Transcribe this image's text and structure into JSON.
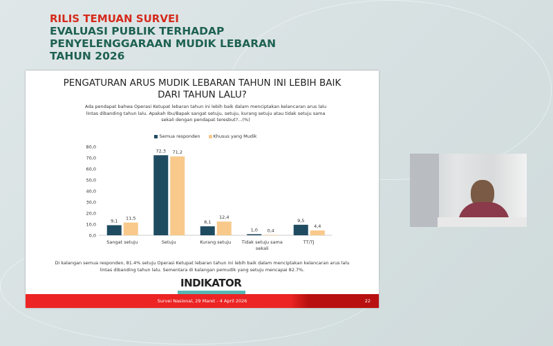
{
  "header": {
    "line1": "RILIS TEMUAN SURVEI",
    "line2": "EVALUASI PUBLIK TERHADAP",
    "line3": "PENYELENGGARAAN MUDIK LEBARAN",
    "line4": "TAHUN 2026"
  },
  "slide": {
    "title_line1": "PENGATURAN ARUS MUDIK LEBARAN TAHUN INI LEBIH BAIK",
    "title_line2": "DARI TAHUN LALU?",
    "question": "Ada pendapat bahwa Operasi Ketupat lebaran tahun ini lebih baik dalam menciptakan kelancaran arus lalu lintas dibanding tahun lalu. Apakah Ibu/Bapak sangat setuju, setuju, kurang setuju atau tidak setuju sama sekali dengan pendapat teresbut?...(%)",
    "note": "Di kalangan semua responden, 81.4% setuju Operasi Ketupat lebaran tahun ini lebih baik dalam menciptakan kelancaran arus lalu lintas dibanding tahun lalu. Sementara di kalangan pemudik yang setuju mencapai 82.7%.",
    "logo": "INDIKATOR",
    "footer": "Survei Nasional, 29 Maret - 4 April 2026",
    "page": "22"
  },
  "chart_data": {
    "type": "bar",
    "categories": [
      "Sangat setuju",
      "Setuju",
      "Kurang setuju",
      "Tidak setuju sama sekali",
      "TT/TJ"
    ],
    "series": [
      {
        "name": "Semua responden",
        "values": [
          9.1,
          72.3,
          8.1,
          1.0,
          9.5
        ],
        "labels": [
          "9,1",
          "72,3",
          "8,1",
          "1,0",
          "9,5"
        ],
        "color": "#1f4b61"
      },
      {
        "name": "Khusus yang Mudik",
        "values": [
          11.5,
          71.2,
          12.4,
          0.4,
          4.4
        ],
        "labels": [
          "11,5",
          "71,2",
          "12,4",
          "0,4",
          "4,4"
        ],
        "color": "#f8c98b"
      }
    ],
    "yticks": [
      "0,0",
      "10,0",
      "20,0",
      "30,0",
      "40,0",
      "50,0",
      "60,0",
      "70,0",
      "80,0"
    ],
    "ylim": [
      0,
      80
    ],
    "legend": "top",
    "grid": false
  }
}
